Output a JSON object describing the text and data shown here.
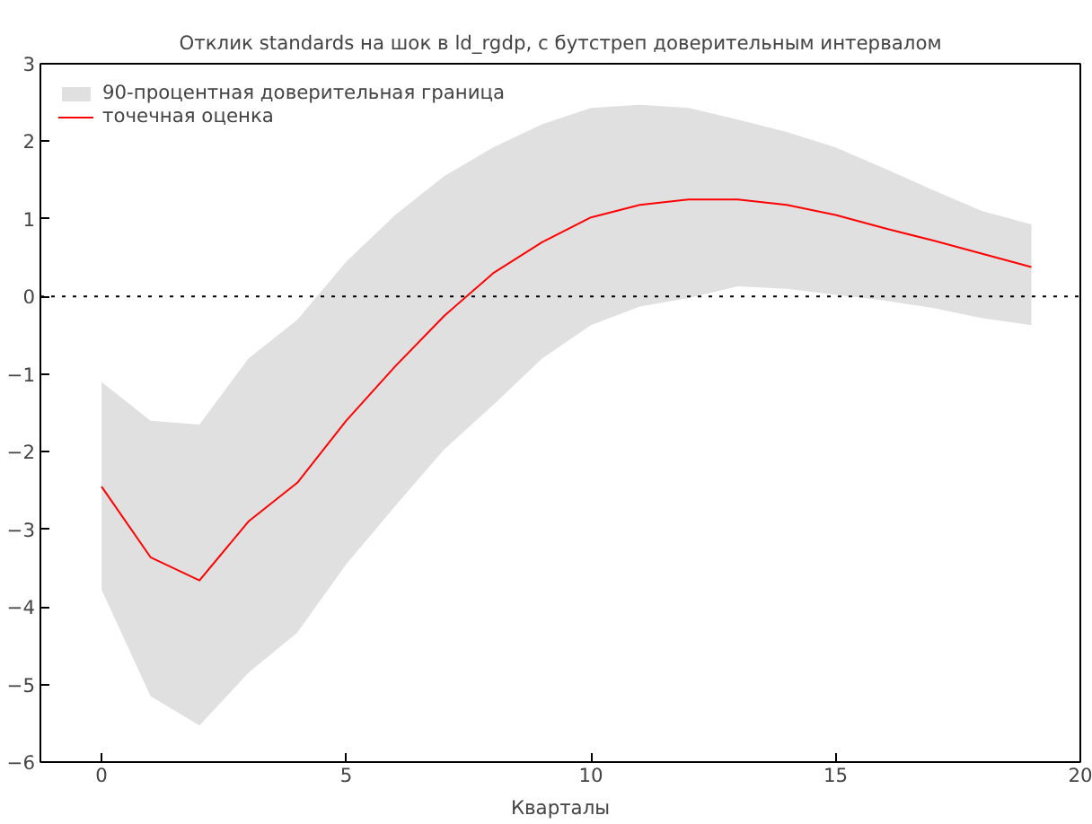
{
  "chart_data": {
    "type": "line",
    "title": "Отклик standards на шок в ld_rgdp, с бутстреп доверительным интервалом",
    "xlabel": "Кварталы",
    "x": [
      0,
      1,
      2,
      3,
      4,
      5,
      6,
      7,
      8,
      9,
      10,
      11,
      12,
      13,
      14,
      15,
      16,
      17,
      18,
      19
    ],
    "series": [
      {
        "type": "area",
        "name": "90-процентная доверительная граница",
        "color": "#e0e0e0",
        "x": [
          0,
          1,
          2,
          3,
          4,
          5,
          6,
          7,
          8,
          9,
          10,
          11,
          12,
          13,
          14,
          15,
          16,
          17,
          18,
          19,
          19,
          18,
          17,
          16,
          15,
          14,
          13,
          12,
          11,
          10,
          9,
          8,
          7,
          6,
          5,
          4,
          3,
          2,
          1,
          0
        ],
        "values": [
          -1.1,
          -1.6,
          -1.65,
          -0.8,
          -0.3,
          0.45,
          1.05,
          1.55,
          1.92,
          2.22,
          2.43,
          2.47,
          2.43,
          2.28,
          2.12,
          1.92,
          1.65,
          1.37,
          1.1,
          0.93,
          -0.37,
          -0.28,
          -0.15,
          -0.05,
          0.02,
          0.1,
          0.13,
          -0.02,
          -0.13,
          -0.37,
          -0.8,
          -1.4,
          -1.97,
          -2.7,
          -3.45,
          -4.33,
          -4.85,
          -5.53,
          -5.15,
          -3.78
        ]
      },
      {
        "type": "line",
        "name": "точечная оценка",
        "color": "#ff0000",
        "values": [
          -2.45,
          -3.36,
          -3.66,
          -2.9,
          -2.4,
          -1.6,
          -0.9,
          -0.25,
          0.3,
          0.7,
          1.02,
          1.18,
          1.25,
          1.25,
          1.18,
          1.05,
          0.88,
          0.72,
          0.55,
          0.38
        ]
      }
    ],
    "xlim": [
      -1.25,
      20
    ],
    "xticks": [
      0,
      5,
      10,
      15,
      20
    ],
    "ylim": [
      -6,
      3
    ],
    "yticks": [
      -6,
      -5,
      -4,
      -3,
      -2,
      -1,
      0,
      1,
      2,
      3
    ],
    "ref_lines": [
      {
        "axis": "y",
        "value": 0,
        "line_style": "dotted",
        "color": "#000000"
      }
    ],
    "grid": false,
    "legend": "top left"
  }
}
